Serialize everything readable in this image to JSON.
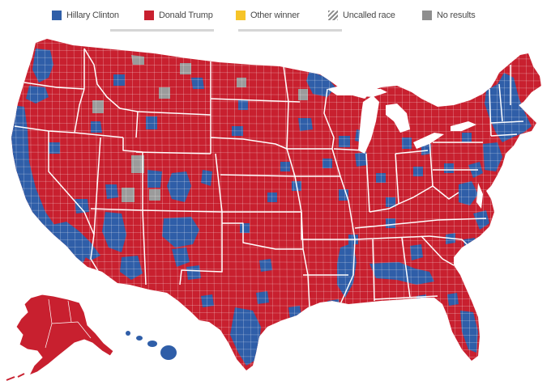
{
  "legend": {
    "items": [
      {
        "label": "Hillary Clinton",
        "color": "#2f5ea8",
        "icon": "blue-square-icon"
      },
      {
        "label": "Donald Trump",
        "color": "#c8202f",
        "icon": "red-square-icon"
      },
      {
        "label": "Other winner",
        "color": "#f6c428",
        "icon": "yellow-square-icon"
      },
      {
        "label": "Uncalled race",
        "color": "#9a9a9a",
        "icon": "hatched-square-icon"
      },
      {
        "label": "No results",
        "color": "#8e8e8e",
        "icon": "gray-square-icon"
      }
    ]
  },
  "map": {
    "colors": {
      "trump": "#c8202f",
      "clinton": "#2f5ea8",
      "no_results": "#9b9b9b",
      "border": "#ffffff"
    }
  }
}
